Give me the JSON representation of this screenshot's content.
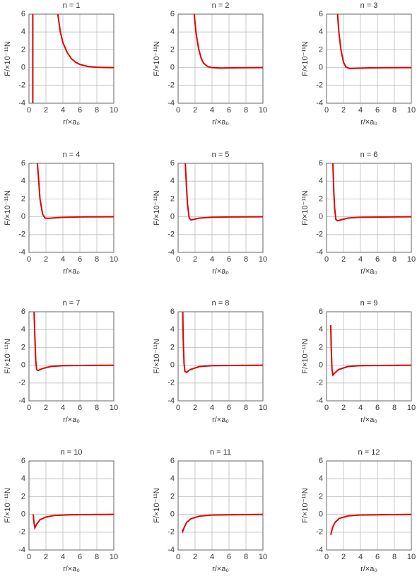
{
  "chart_data": [
    {
      "type": "line",
      "title": "n = 1",
      "xlabel": "r/×a₀",
      "ylabel": "F/×10⁻¹¹N",
      "color": "#e00000",
      "grid": true,
      "xlim": [
        0,
        10
      ],
      "xticks": [
        0,
        2,
        4,
        6,
        8,
        10
      ],
      "ylim": [
        -4,
        6
      ],
      "yticks": [
        -4,
        -2,
        0,
        2,
        4,
        6
      ],
      "x": [
        0.45,
        0.45,
        2,
        3.4,
        3.7,
        4,
        4.5,
        5,
        5.5,
        6,
        7,
        8,
        9,
        10
      ],
      "values": [
        -4,
        6,
        null,
        6,
        4,
        2.8,
        1.7,
        1.0,
        0.6,
        0.35,
        0.12,
        0.04,
        0.01,
        0
      ]
    },
    {
      "type": "line",
      "title": "n = 2",
      "xlabel": "r/×a₀",
      "ylabel": "F/×10⁻¹¹N",
      "color": "#e00000",
      "grid": true,
      "xlim": [
        0,
        10
      ],
      "xticks": [
        0,
        2,
        4,
        6,
        8,
        10
      ],
      "ylim": [
        -4,
        6
      ],
      "yticks": [
        -4,
        -2,
        0,
        2,
        4,
        6
      ],
      "x": [
        1.9,
        2.1,
        2.4,
        2.7,
        3,
        3.5,
        4,
        5,
        6,
        8,
        10
      ],
      "values": [
        6,
        4,
        2.2,
        1.1,
        0.5,
        0.1,
        0,
        -0.05,
        -0.03,
        -0.01,
        0
      ]
    },
    {
      "type": "line",
      "title": "n = 3",
      "xlabel": "r/×a₀",
      "ylabel": "F/×10⁻¹¹N",
      "color": "#e00000",
      "grid": true,
      "xlim": [
        0,
        10
      ],
      "xticks": [
        0,
        2,
        4,
        6,
        8,
        10
      ],
      "ylim": [
        -4,
        6
      ],
      "yticks": [
        -4,
        -2,
        0,
        2,
        4,
        6
      ],
      "x": [
        1.3,
        1.45,
        1.7,
        2,
        2.3,
        2.7,
        3.5,
        5,
        7,
        10
      ],
      "values": [
        6,
        4,
        2,
        0.6,
        0.05,
        -0.1,
        -0.08,
        -0.03,
        -0.01,
        0
      ]
    },
    {
      "type": "line",
      "title": "n = 4",
      "xlabel": "r/×a₀",
      "ylabel": "F/×10⁻¹¹N",
      "color": "#e00000",
      "grid": true,
      "xlim": [
        0,
        10
      ],
      "xticks": [
        0,
        2,
        4,
        6,
        8,
        10
      ],
      "ylim": [
        -4,
        6
      ],
      "yticks": [
        -4,
        -2,
        0,
        2,
        4,
        6
      ],
      "x": [
        1.0,
        1.15,
        1.3,
        1.6,
        1.9,
        2.3,
        3,
        4,
        6,
        10
      ],
      "values": [
        6,
        4,
        2,
        0.3,
        -0.15,
        -0.18,
        -0.12,
        -0.06,
        -0.02,
        0
      ]
    },
    {
      "type": "line",
      "title": "n = 5",
      "xlabel": "r/×a₀",
      "ylabel": "F/×10⁻¹¹N",
      "color": "#e00000",
      "grid": true,
      "xlim": [
        0,
        10
      ],
      "xticks": [
        0,
        2,
        4,
        6,
        8,
        10
      ],
      "ylim": [
        -4,
        6
      ],
      "yticks": [
        -4,
        -2,
        0,
        2,
        4,
        6
      ],
      "x": [
        0.85,
        0.95,
        1.1,
        1.3,
        1.5,
        1.8,
        2.5,
        4,
        6,
        10
      ],
      "values": [
        6,
        4,
        1.5,
        -0.1,
        -0.35,
        -0.3,
        -0.15,
        -0.05,
        -0.02,
        0
      ]
    },
    {
      "type": "line",
      "title": "n = 6",
      "xlabel": "r/×a₀",
      "ylabel": "F/×10⁻¹¹N",
      "color": "#e00000",
      "grid": true,
      "xlim": [
        0,
        10
      ],
      "xticks": [
        0,
        2,
        4,
        6,
        8,
        10
      ],
      "ylim": [
        -4,
        6
      ],
      "yticks": [
        -4,
        -2,
        0,
        2,
        4,
        6
      ],
      "x": [
        0.75,
        0.85,
        0.95,
        1.1,
        1.3,
        1.7,
        2.5,
        4,
        10
      ],
      "values": [
        6,
        3,
        1,
        -0.3,
        -0.45,
        -0.35,
        -0.15,
        -0.05,
        0
      ]
    },
    {
      "type": "line",
      "title": "n = 7",
      "xlabel": "r/×a₀",
      "ylabel": "F/×10⁻¹¹N",
      "color": "#e00000",
      "grid": true,
      "xlim": [
        0,
        10
      ],
      "xticks": [
        0,
        2,
        4,
        6,
        8,
        10
      ],
      "ylim": [
        -4,
        6
      ],
      "yticks": [
        -4,
        -2,
        0,
        2,
        4,
        6
      ],
      "x": [
        0.6,
        0.7,
        0.8,
        0.9,
        1.1,
        1.5,
        2.5,
        4,
        10
      ],
      "values": [
        6,
        3,
        0.5,
        -0.5,
        -0.6,
        -0.4,
        -0.15,
        -0.05,
        0
      ]
    },
    {
      "type": "line",
      "title": "n = 8",
      "xlabel": "r/×a₀",
      "ylabel": "F/×10⁻¹¹N",
      "color": "#e00000",
      "grid": true,
      "xlim": [
        0,
        10
      ],
      "xticks": [
        0,
        2,
        4,
        6,
        8,
        10
      ],
      "ylim": [
        -4,
        6
      ],
      "yticks": [
        -4,
        -2,
        0,
        2,
        4,
        6
      ],
      "x": [
        0.55,
        0.6,
        0.7,
        0.8,
        1.0,
        1.4,
        2.5,
        4,
        10
      ],
      "values": [
        6,
        3,
        0.2,
        -0.7,
        -0.8,
        -0.5,
        -0.15,
        -0.05,
        0
      ]
    },
    {
      "type": "line",
      "title": "n = 9",
      "xlabel": "r/×a₀",
      "ylabel": "F/×10⁻¹¹N",
      "color": "#e00000",
      "grid": true,
      "xlim": [
        0,
        10
      ],
      "xticks": [
        0,
        2,
        4,
        6,
        8,
        10
      ],
      "ylim": [
        -4,
        6
      ],
      "yticks": [
        -4,
        -2,
        0,
        2,
        4,
        6
      ],
      "x": [
        0.5,
        0.55,
        0.65,
        0.75,
        0.95,
        1.4,
        2.5,
        4,
        10
      ],
      "values": [
        4.5,
        2,
        -0.5,
        -1.1,
        -0.9,
        -0.5,
        -0.15,
        -0.05,
        0
      ]
    },
    {
      "type": "line",
      "title": "n = 10",
      "xlabel": "r/×a₀",
      "ylabel": "F/×10⁻¹¹N",
      "color": "#e00000",
      "grid": true,
      "xlim": [
        0,
        10
      ],
      "xticks": [
        0,
        2,
        4,
        6,
        8,
        10
      ],
      "ylim": [
        -4,
        6
      ],
      "yticks": [
        -4,
        -2,
        0,
        2,
        4,
        6
      ],
      "x": [
        0.5,
        0.6,
        0.7,
        0.9,
        1.3,
        2,
        3,
        5,
        10
      ],
      "values": [
        0,
        -1.0,
        -1.5,
        -1.1,
        -0.6,
        -0.3,
        -0.12,
        -0.04,
        0
      ]
    },
    {
      "type": "line",
      "title": "n = 11",
      "xlabel": "r/×a₀",
      "ylabel": "F/×10⁻¹¹N",
      "color": "#e00000",
      "grid": true,
      "xlim": [
        0,
        10
      ],
      "xticks": [
        0,
        2,
        4,
        6,
        8,
        10
      ],
      "ylim": [
        -4,
        6
      ],
      "yticks": [
        -4,
        -2,
        0,
        2,
        4,
        6
      ],
      "x": [
        0.5,
        0.55,
        0.7,
        1,
        1.5,
        2.5,
        4,
        10
      ],
      "values": [
        -1.7,
        -1.9,
        -1.5,
        -0.9,
        -0.5,
        -0.2,
        -0.07,
        0
      ]
    },
    {
      "type": "line",
      "title": "n = 12",
      "xlabel": "r/×a₀",
      "ylabel": "F/×10⁻¹¹N",
      "color": "#e00000",
      "grid": true,
      "xlim": [
        0,
        10
      ],
      "xticks": [
        0,
        2,
        4,
        6,
        8,
        10
      ],
      "ylim": [
        -4,
        6
      ],
      "yticks": [
        -4,
        -2,
        0,
        2,
        4,
        6
      ],
      "x": [
        0.5,
        0.7,
        1,
        1.5,
        2.5,
        4,
        10
      ],
      "values": [
        -2.3,
        -1.5,
        -0.9,
        -0.45,
        -0.18,
        -0.07,
        0
      ]
    }
  ]
}
